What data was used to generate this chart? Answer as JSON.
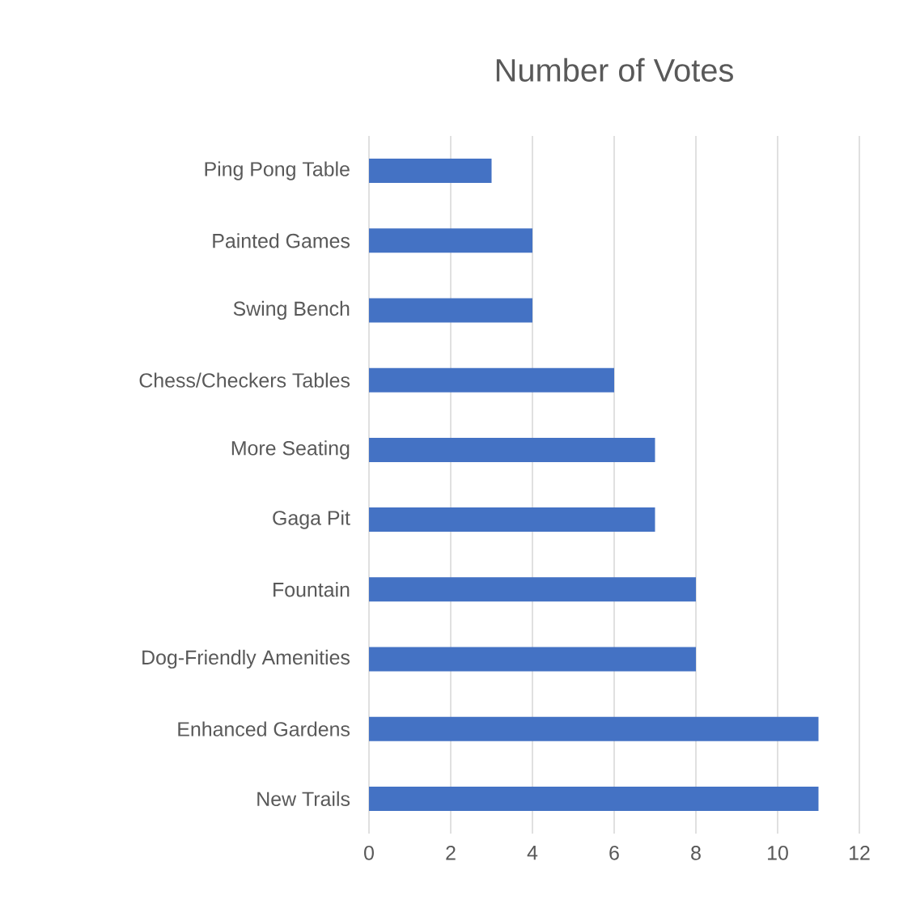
{
  "chart_data": {
    "type": "bar",
    "orientation": "horizontal",
    "title": "Number of Votes",
    "categories": [
      "Ping Pong Table",
      "Painted Games",
      "Swing Bench",
      "Chess/Checkers Tables",
      "More Seating",
      "Gaga Pit",
      "Fountain",
      "Dog-Friendly Amenities",
      "Enhanced Gardens",
      "New Trails"
    ],
    "values": [
      3,
      4,
      4,
      6,
      7,
      7,
      8,
      8,
      11,
      11
    ],
    "color": "#4472c4",
    "xlim": [
      0,
      12
    ],
    "xticks": [
      0,
      2,
      4,
      6,
      8,
      10,
      12
    ],
    "grid": "x"
  }
}
